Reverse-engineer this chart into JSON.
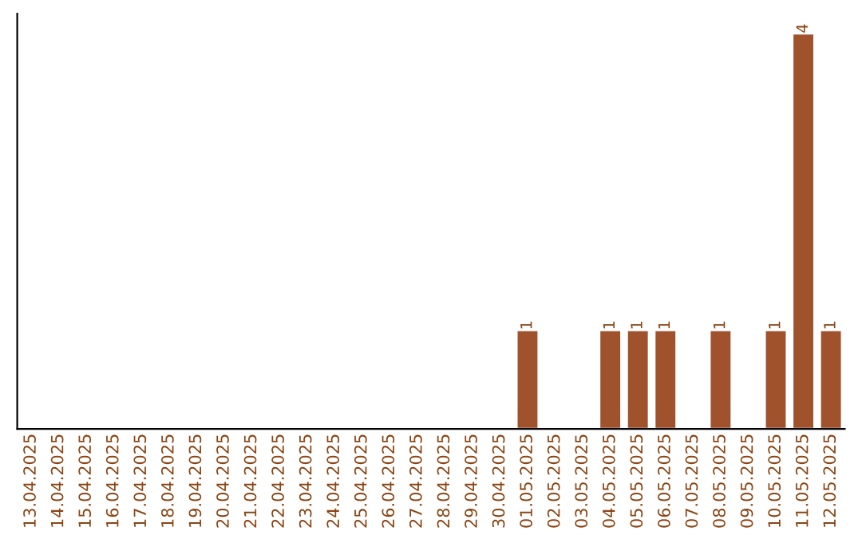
{
  "chart_data": {
    "type": "bar",
    "categories": [
      "13.04.2025",
      "14.04.2025",
      "15.04.2025",
      "16.04.2025",
      "17.04.2025",
      "18.04.2025",
      "19.04.2025",
      "20.04.2025",
      "21.04.2025",
      "22.04.2025",
      "23.04.2025",
      "24.04.2025",
      "25.04.2025",
      "26.04.2025",
      "27.04.2025",
      "28.04.2025",
      "29.04.2025",
      "30.04.2025",
      "01.05.2025",
      "02.05.2025",
      "03.05.2025",
      "04.05.2025",
      "05.05.2025",
      "06.05.2025",
      "07.05.2025",
      "08.05.2025",
      "09.05.2025",
      "10.05.2025",
      "11.05.2025",
      "12.05.2025"
    ],
    "values": [
      null,
      null,
      null,
      null,
      null,
      null,
      null,
      null,
      null,
      null,
      null,
      null,
      null,
      null,
      null,
      null,
      null,
      null,
      1,
      null,
      null,
      1,
      1,
      1,
      null,
      1,
      null,
      1,
      4,
      1
    ],
    "value_labels": [
      null,
      null,
      null,
      null,
      null,
      null,
      null,
      null,
      null,
      null,
      null,
      null,
      null,
      null,
      null,
      null,
      null,
      null,
      "1",
      null,
      null,
      "1",
      "1",
      "1",
      null,
      "1",
      null,
      "1",
      "4",
      "1"
    ],
    "color": "#a0522d",
    "tick_labels": "x",
    "grid": false,
    "legend": false
  }
}
